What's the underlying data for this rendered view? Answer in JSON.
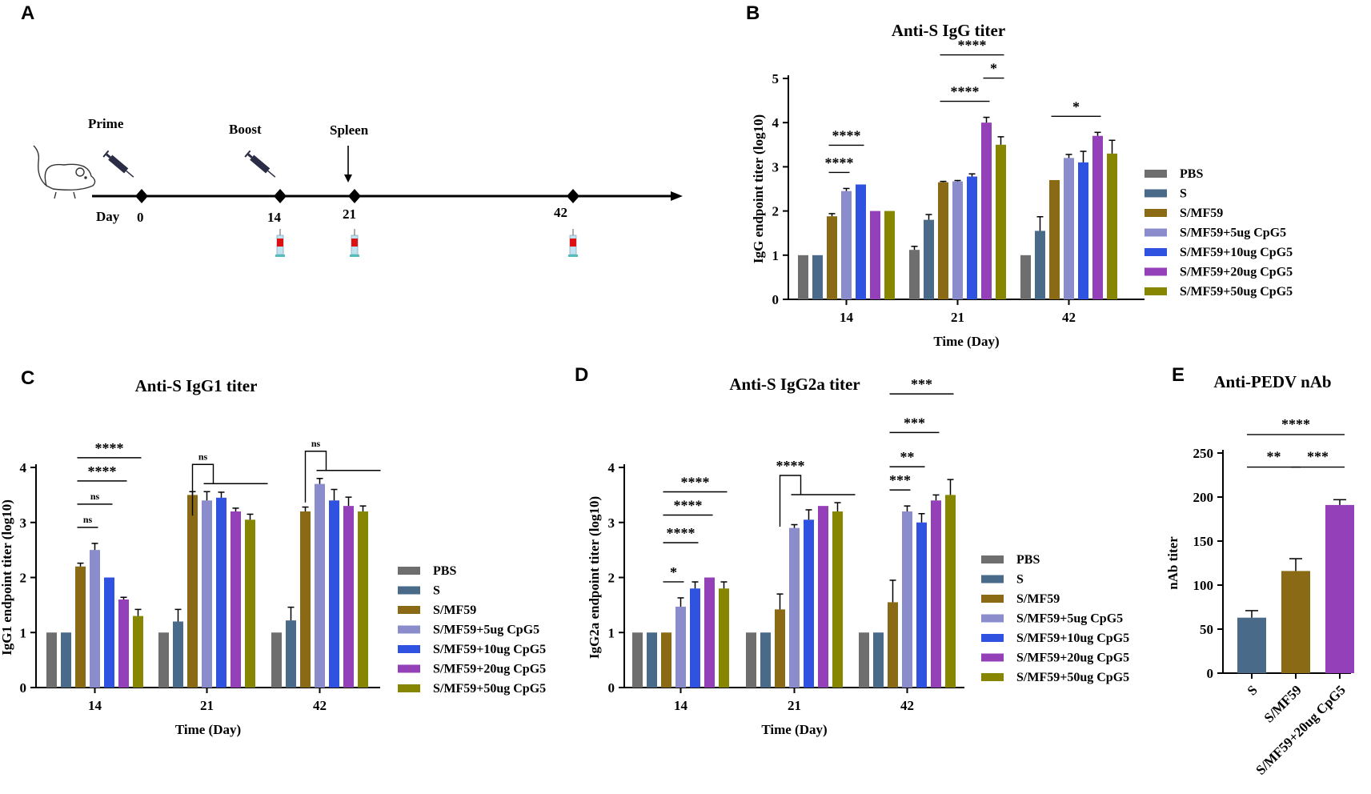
{
  "panels": {
    "A": "A",
    "B": "B",
    "C": "C",
    "D": "D",
    "E": "E"
  },
  "colors": {
    "PBS": "#6e6e6e",
    "S": "#4a6a8a",
    "S/MF59": "#8a6a14",
    "S/MF59+5ug CpG5": "#8a8ccc",
    "S/MF59+10ug CpG5": "#2f52e0",
    "S/MF59+20ug CpG5": "#9440b8",
    "S/MF59+50ug CpG5": "#868600"
  },
  "timeline": {
    "labels": {
      "prime": "Prime",
      "boost": "Boost",
      "spleen": "Spleen",
      "day": "Day"
    },
    "days": [
      "0",
      "14",
      "21",
      "42"
    ],
    "icons": [
      "mouse-icon",
      "syringe-icon",
      "arrow-down-icon",
      "blood-tube-icon"
    ]
  },
  "chart_data": [
    {
      "id": "B",
      "type": "bar",
      "title": "Anti-S IgG titer",
      "xlabel": "Time (Day)",
      "ylabel": "IgG endpoint titer (log10)",
      "ylim": [
        0,
        5
      ],
      "yticks": [
        "0",
        "1",
        "2",
        "3",
        "4",
        "5"
      ],
      "categories": [
        "14",
        "21",
        "42"
      ],
      "series": [
        {
          "name": "PBS",
          "values": [
            1,
            1.12,
            1
          ],
          "errors": [
            0,
            0.08,
            0
          ]
        },
        {
          "name": "S",
          "values": [
            1,
            1.8,
            1.55
          ],
          "errors": [
            0,
            0.12,
            0.32
          ]
        },
        {
          "name": "S/MF59",
          "values": [
            1.88,
            2.65,
            2.7
          ],
          "errors": [
            0.06,
            0.02,
            0
          ]
        },
        {
          "name": "S/MF59+5ug CpG5",
          "values": [
            2.45,
            2.67,
            3.2
          ],
          "errors": [
            0.06,
            0.02,
            0.08
          ]
        },
        {
          "name": "S/MF59+10ug CpG5",
          "values": [
            2.6,
            2.78,
            3.1
          ],
          "errors": [
            0,
            0.06,
            0.25
          ]
        },
        {
          "name": "S/MF59+20ug CpG5",
          "values": [
            2,
            4,
            3.7
          ],
          "errors": [
            0,
            0.12,
            0.08
          ]
        },
        {
          "name": "S/MF59+50ug CpG5",
          "values": [
            2,
            3.5,
            3.3
          ],
          "errors": [
            0,
            0.18,
            0.3
          ]
        }
      ],
      "annotations": [
        {
          "text": "****",
          "group": 0,
          "from": 2,
          "to": 3
        },
        {
          "text": "****",
          "group": 0,
          "from": 2,
          "to": 4
        },
        {
          "text": "****",
          "group": 1,
          "from": 2,
          "to": 5
        },
        {
          "text": "*",
          "group": 1,
          "from": 5,
          "to": 6
        },
        {
          "text": "****",
          "group": 1,
          "from": 2,
          "to": 6
        },
        {
          "text": "*",
          "group": 2,
          "from": 2,
          "to": 5
        }
      ]
    },
    {
      "id": "C",
      "type": "bar",
      "title": "Anti-S IgG1 titer",
      "xlabel": "Time (Day)",
      "ylabel": "IgG1 endpoint titer (log10)",
      "ylim": [
        0,
        4
      ],
      "yticks": [
        "0",
        "1",
        "2",
        "3",
        "4"
      ],
      "categories": [
        "14",
        "21",
        "42"
      ],
      "series": [
        {
          "name": "PBS",
          "values": [
            1,
            1,
            1
          ],
          "errors": [
            0,
            0,
            0
          ]
        },
        {
          "name": "S",
          "values": [
            1,
            1.2,
            1.22
          ],
          "errors": [
            0,
            0.22,
            0.24
          ]
        },
        {
          "name": "S/MF59",
          "values": [
            2.2,
            3.5,
            3.2
          ],
          "errors": [
            0.06,
            0.06,
            0.08
          ]
        },
        {
          "name": "S/MF59+5ug CpG5",
          "values": [
            2.5,
            3.4,
            3.7
          ],
          "errors": [
            0.12,
            0.16,
            0.1
          ]
        },
        {
          "name": "S/MF59+10ug CpG5",
          "values": [
            2,
            3.45,
            3.4
          ],
          "errors": [
            0,
            0.1,
            0.2
          ]
        },
        {
          "name": "S/MF59+20ug CpG5",
          "values": [
            1.6,
            3.2,
            3.3
          ],
          "errors": [
            0.04,
            0.06,
            0.16
          ]
        },
        {
          "name": "S/MF59+50ug CpG5",
          "values": [
            1.3,
            3.05,
            3.2
          ],
          "errors": [
            0.12,
            0.1,
            0.1
          ]
        }
      ],
      "annotations": [
        {
          "text": "ns",
          "group": 0,
          "from": 2,
          "to": 3
        },
        {
          "text": "ns",
          "group": 0,
          "from": 2,
          "to": 4
        },
        {
          "text": "****",
          "group": 0,
          "from": 2,
          "to": 5
        },
        {
          "text": "****",
          "group": 0,
          "from": 2,
          "to": 6
        },
        {
          "text": "ns",
          "group": 1,
          "from": 2,
          "to": 6,
          "bracket": true
        },
        {
          "text": "ns",
          "group": 2,
          "from": 2,
          "to": 6,
          "bracket": true
        }
      ]
    },
    {
      "id": "D",
      "type": "bar",
      "title": "Anti-S IgG2a titer",
      "xlabel": "Time (Day)",
      "ylabel": "IgG2a endpoint titer (log10)",
      "ylim": [
        0,
        4
      ],
      "yticks": [
        "0",
        "1",
        "2",
        "3",
        "4"
      ],
      "categories": [
        "14",
        "21",
        "42"
      ],
      "series": [
        {
          "name": "PBS",
          "values": [
            1,
            1,
            1
          ],
          "errors": [
            0,
            0,
            0
          ]
        },
        {
          "name": "S",
          "values": [
            1,
            1,
            1
          ],
          "errors": [
            0,
            0,
            0
          ]
        },
        {
          "name": "S/MF59",
          "values": [
            1,
            1.42,
            1.55
          ],
          "errors": [
            0,
            0.28,
            0.4
          ]
        },
        {
          "name": "S/MF59+5ug CpG5",
          "values": [
            1.47,
            2.9,
            3.2
          ],
          "errors": [
            0.16,
            0.06,
            0.1
          ]
        },
        {
          "name": "S/MF59+10ug CpG5",
          "values": [
            1.8,
            3.05,
            3
          ],
          "errors": [
            0.12,
            0.18,
            0.16
          ]
        },
        {
          "name": "S/MF59+20ug CpG5",
          "values": [
            2,
            3.3,
            3.4
          ],
          "errors": [
            0,
            0,
            0.1
          ]
        },
        {
          "name": "S/MF59+50ug CpG5",
          "values": [
            1.8,
            3.2,
            3.5
          ],
          "errors": [
            0.12,
            0.16,
            0.28
          ]
        }
      ],
      "annotations": [
        {
          "text": "*",
          "group": 0,
          "from": 2,
          "to": 3
        },
        {
          "text": "****",
          "group": 0,
          "from": 2,
          "to": 4
        },
        {
          "text": "****",
          "group": 0,
          "from": 2,
          "to": 5
        },
        {
          "text": "****",
          "group": 0,
          "from": 2,
          "to": 6
        },
        {
          "text": "****",
          "group": 1,
          "from": 2,
          "to": 6,
          "bracket": true
        },
        {
          "text": "***",
          "group": 2,
          "from": 2,
          "to": 3
        },
        {
          "text": "**",
          "group": 2,
          "from": 2,
          "to": 4
        },
        {
          "text": "***",
          "group": 2,
          "from": 2,
          "to": 5
        },
        {
          "text": "***",
          "group": 2,
          "from": 2,
          "to": 6
        }
      ]
    },
    {
      "id": "E",
      "type": "bar",
      "title": "Anti-PEDV nAb",
      "ylabel": "nAb titer",
      "ylim": [
        0,
        250
      ],
      "yticks": [
        "0",
        "50",
        "100",
        "150",
        "200",
        "250"
      ],
      "categories": [
        "S",
        "S/MF59",
        "S/MF59+20ug CpG5"
      ],
      "values": [
        63,
        116,
        191
      ],
      "errors": [
        8,
        14,
        6
      ],
      "colors": [
        "#4a6a8a",
        "#8a6a14",
        "#9440b8"
      ],
      "annotations": [
        {
          "text": "**",
          "from": 0,
          "to": 1
        },
        {
          "text": "***",
          "from": 1,
          "to": 2
        },
        {
          "text": "****",
          "from": 0,
          "to": 2
        }
      ]
    }
  ]
}
